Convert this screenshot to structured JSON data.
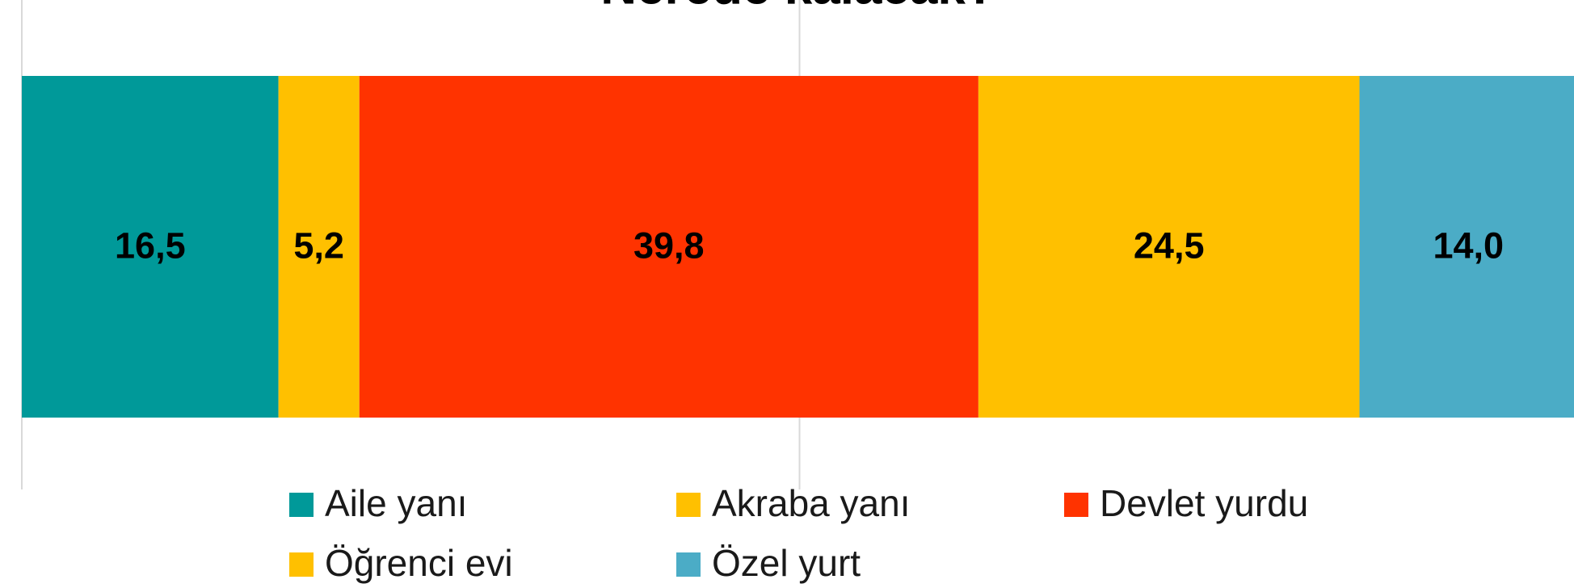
{
  "chart_data": {
    "type": "stacked_bar_horizontal",
    "title": "Nerede kalacak?",
    "series": [
      {
        "name": "Aile yanı",
        "color": "#009999",
        "values": [
          16.5
        ],
        "value_labels": [
          "16,5"
        ]
      },
      {
        "name": "Akraba yanı",
        "color": "#FFC000",
        "values": [
          5.2
        ],
        "value_labels": [
          "5,2"
        ]
      },
      {
        "name": "Devlet yurdu",
        "color": "#FF3300",
        "values": [
          39.8
        ],
        "value_labels": [
          "39,8"
        ]
      },
      {
        "name": "Öğrenci evi",
        "color": "#FFC000",
        "values": [
          24.5
        ],
        "value_labels": [
          "24,5"
        ]
      },
      {
        "name": "Özel yurt",
        "color": "#4BACC6",
        "values": [
          14.0
        ],
        "value_labels": [
          "14,0"
        ]
      }
    ],
    "xlim": [
      0,
      100
    ],
    "xticks": [
      0,
      50,
      100
    ],
    "grid": true
  }
}
